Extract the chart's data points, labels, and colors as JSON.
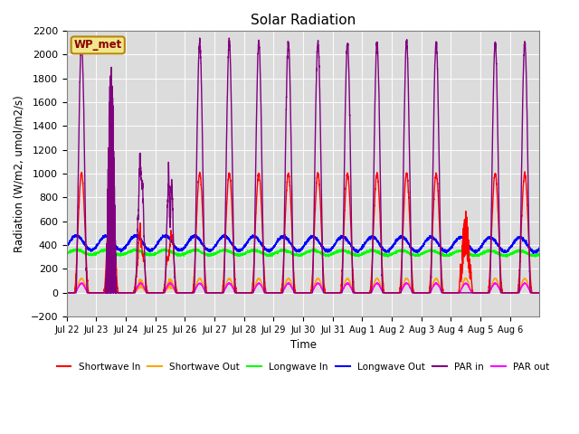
{
  "title": "Solar Radiation",
  "ylabel": "Radiation (W/m2, umol/m2/s)",
  "xlabel": "Time",
  "ylim": [
    -200,
    2200
  ],
  "yticks": [
    -200,
    0,
    200,
    400,
    600,
    800,
    1000,
    1200,
    1400,
    1600,
    1800,
    2000,
    2200
  ],
  "annotation": "WP_met",
  "annotation_color": "#8B0000",
  "annotation_bg": "#F0E68C",
  "annotation_border": "#B8860B",
  "bg_color": "#DCDCDC",
  "n_days": 16,
  "points_per_day": 288,
  "sw_in_peak": 1000,
  "sw_out_peak": 120,
  "lw_in_base": 350,
  "lw_out_base": 400,
  "par_in_peak": 2100,
  "par_out_peak": 80,
  "disrupted_days": [
    2,
    3
  ],
  "disrupted2_days": [
    13
  ],
  "legend_colors": {
    "Shortwave In": "red",
    "Shortwave Out": "orange",
    "Longwave In": "lime",
    "Longwave Out": "blue",
    "PAR in": "purple",
    "PAR out": "magenta"
  }
}
